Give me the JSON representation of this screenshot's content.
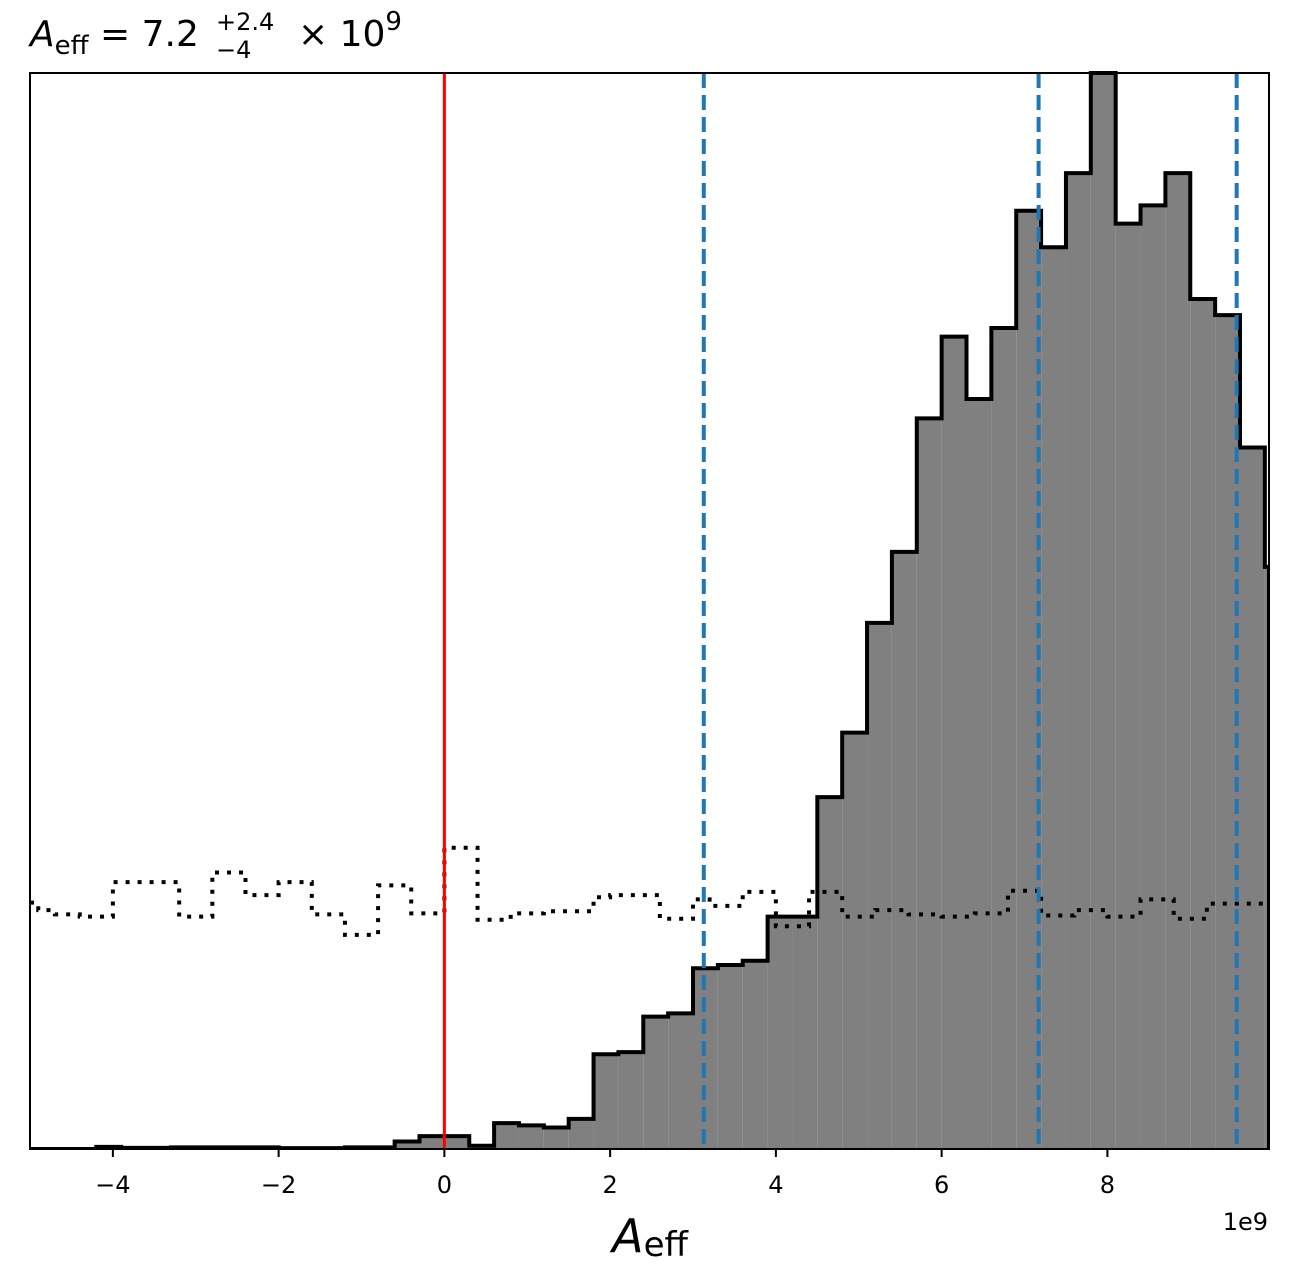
{
  "chart_data": {
    "type": "histogram",
    "title": {
      "symbol": "A",
      "subscript": "eff",
      "equals": " = ",
      "median": "7.2",
      "upper": "+2.4",
      "lower": "−4",
      "multiplier": " × 10",
      "exponent": "9"
    },
    "xlabel": {
      "symbol": "A",
      "subscript": "eff"
    },
    "x_offset_label": "1e9",
    "xlim": [
      -5.0,
      9.95
    ],
    "ylim": [
      0,
      1.0
    ],
    "xticks": [
      -4,
      -2,
      0,
      2,
      4,
      6,
      8
    ],
    "xtick_labels": [
      "−4",
      "−2",
      "0",
      "2",
      "4",
      "6",
      "8"
    ],
    "posterior_color": "#808080",
    "prior_line_style": "dotted",
    "truth_line": {
      "x": 0,
      "color": "#ff0000"
    },
    "quantile_lines": {
      "x": [
        3.13,
        7.17,
        9.56
      ],
      "color": "#1f77b4",
      "style": "dashed"
    },
    "posterior_bins": [
      {
        "x0": -5.0,
        "x1": -4.2,
        "h": 0.0
      },
      {
        "x0": -4.2,
        "x1": -3.9,
        "h": 0.002
      },
      {
        "x0": -3.9,
        "x1": -3.3,
        "h": 0.001
      },
      {
        "x0": -3.3,
        "x1": -2.0,
        "h": 0.0015
      },
      {
        "x0": -2.0,
        "x1": -1.2,
        "h": 0.0008
      },
      {
        "x0": -1.2,
        "x1": -0.6,
        "h": 0.0015
      },
      {
        "x0": -0.6,
        "x1": -0.3,
        "h": 0.007
      },
      {
        "x0": -0.3,
        "x1": 0.3,
        "h": 0.012
      },
      {
        "x0": 0.3,
        "x1": 0.6,
        "h": 0.003
      },
      {
        "x0": 0.6,
        "x1": 0.9,
        "h": 0.024
      },
      {
        "x0": 0.9,
        "x1": 1.2,
        "h": 0.022
      },
      {
        "x0": 1.2,
        "x1": 1.5,
        "h": 0.02
      },
      {
        "x0": 1.5,
        "x1": 1.8,
        "h": 0.028
      },
      {
        "x0": 1.8,
        "x1": 2.1,
        "h": 0.088
      },
      {
        "x0": 2.1,
        "x1": 2.4,
        "h": 0.09
      },
      {
        "x0": 2.4,
        "x1": 2.7,
        "h": 0.123
      },
      {
        "x0": 2.7,
        "x1": 3.0,
        "h": 0.126
      },
      {
        "x0": 3.0,
        "x1": 3.3,
        "h": 0.168
      },
      {
        "x0": 3.3,
        "x1": 3.6,
        "h": 0.171
      },
      {
        "x0": 3.6,
        "x1": 3.9,
        "h": 0.175
      },
      {
        "x0": 3.9,
        "x1": 4.2,
        "h": 0.216
      },
      {
        "x0": 4.2,
        "x1": 4.5,
        "h": 0.216
      },
      {
        "x0": 4.5,
        "x1": 4.8,
        "h": 0.327
      },
      {
        "x0": 4.8,
        "x1": 5.1,
        "h": 0.387
      },
      {
        "x0": 5.1,
        "x1": 5.4,
        "h": 0.489
      },
      {
        "x0": 5.4,
        "x1": 5.7,
        "h": 0.555
      },
      {
        "x0": 5.7,
        "x1": 6.0,
        "h": 0.679
      },
      {
        "x0": 6.0,
        "x1": 6.3,
        "h": 0.755
      },
      {
        "x0": 6.3,
        "x1": 6.6,
        "h": 0.697
      },
      {
        "x0": 6.6,
        "x1": 6.9,
        "h": 0.763
      },
      {
        "x0": 6.9,
        "x1": 7.2,
        "h": 0.872
      },
      {
        "x0": 7.2,
        "x1": 7.5,
        "h": 0.838
      },
      {
        "x0": 7.5,
        "x1": 7.8,
        "h": 0.907
      },
      {
        "x0": 7.8,
        "x1": 8.1,
        "h": 1.0
      },
      {
        "x0": 8.1,
        "x1": 8.4,
        "h": 0.86
      },
      {
        "x0": 8.4,
        "x1": 8.7,
        "h": 0.877
      },
      {
        "x0": 8.7,
        "x1": 9.0,
        "h": 0.907
      },
      {
        "x0": 9.0,
        "x1": 9.3,
        "h": 0.79
      },
      {
        "x0": 9.3,
        "x1": 9.6,
        "h": 0.775
      },
      {
        "x0": 9.6,
        "x1": 9.9,
        "h": 0.652
      },
      {
        "x0": 9.9,
        "x1": 9.95,
        "h": 0.541
      }
    ],
    "prior_bins": [
      {
        "x0": -5.0,
        "x1": -4.9,
        "h": 0.229
      },
      {
        "x0": -4.9,
        "x1": -4.7,
        "h": 0.222
      },
      {
        "x0": -4.7,
        "x1": -4.4,
        "h": 0.218
      },
      {
        "x0": -4.4,
        "x1": -4.0,
        "h": 0.216
      },
      {
        "x0": -4.0,
        "x1": -3.2,
        "h": 0.248
      },
      {
        "x0": -3.2,
        "x1": -2.8,
        "h": 0.216
      },
      {
        "x0": -2.8,
        "x1": -2.4,
        "h": 0.257
      },
      {
        "x0": -2.4,
        "x1": -2.0,
        "h": 0.236
      },
      {
        "x0": -2.0,
        "x1": -1.6,
        "h": 0.248
      },
      {
        "x0": -1.6,
        "x1": -1.2,
        "h": 0.218
      },
      {
        "x0": -1.2,
        "x1": -0.8,
        "h": 0.199
      },
      {
        "x0": -0.8,
        "x1": -0.4,
        "h": 0.245
      },
      {
        "x0": -0.4,
        "x1": 0.0,
        "h": 0.219
      },
      {
        "x0": 0.0,
        "x1": 0.4,
        "h": 0.28
      },
      {
        "x0": 0.4,
        "x1": 0.8,
        "h": 0.213
      },
      {
        "x0": 0.8,
        "x1": 1.2,
        "h": 0.219
      },
      {
        "x0": 1.2,
        "x1": 1.8,
        "h": 0.221
      },
      {
        "x0": 1.8,
        "x1": 2.0,
        "h": 0.234
      },
      {
        "x0": 2.0,
        "x1": 2.6,
        "h": 0.236
      },
      {
        "x0": 2.6,
        "x1": 3.0,
        "h": 0.214
      },
      {
        "x0": 3.0,
        "x1": 3.2,
        "h": 0.232
      },
      {
        "x0": 3.2,
        "x1": 3.6,
        "h": 0.226
      },
      {
        "x0": 3.6,
        "x1": 4.0,
        "h": 0.239
      },
      {
        "x0": 4.0,
        "x1": 4.4,
        "h": 0.207
      },
      {
        "x0": 4.4,
        "x1": 4.8,
        "h": 0.239
      },
      {
        "x0": 4.8,
        "x1": 5.2,
        "h": 0.216
      },
      {
        "x0": 5.2,
        "x1": 5.6,
        "h": 0.222
      },
      {
        "x0": 5.6,
        "x1": 6.0,
        "h": 0.218
      },
      {
        "x0": 6.0,
        "x1": 6.4,
        "h": 0.216
      },
      {
        "x0": 6.4,
        "x1": 6.8,
        "h": 0.219
      },
      {
        "x0": 6.8,
        "x1": 7.2,
        "h": 0.24
      },
      {
        "x0": 7.2,
        "x1": 7.6,
        "h": 0.217
      },
      {
        "x0": 7.6,
        "x1": 8.0,
        "h": 0.222
      },
      {
        "x0": 8.0,
        "x1": 8.4,
        "h": 0.216
      },
      {
        "x0": 8.4,
        "x1": 8.8,
        "h": 0.232
      },
      {
        "x0": 8.8,
        "x1": 9.2,
        "h": 0.214
      },
      {
        "x0": 9.2,
        "x1": 9.6,
        "h": 0.228
      },
      {
        "x0": 9.6,
        "x1": 9.95,
        "h": 0.228
      }
    ]
  }
}
